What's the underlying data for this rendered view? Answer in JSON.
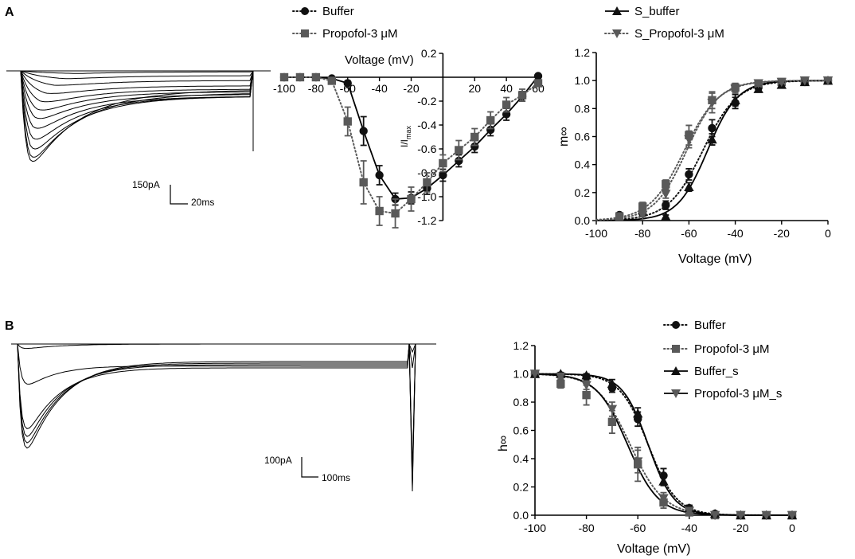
{
  "panels": [
    {
      "label": "A"
    },
    {
      "label": "B"
    }
  ],
  "scale_bars": {
    "a": {
      "current": "150pA",
      "time": "20ms"
    },
    "b": {
      "current": "100pA",
      "time": "100ms"
    }
  },
  "colors": {
    "buffer": "#111111",
    "propofol": "#595959"
  },
  "chart_data": [
    {
      "id": "iv",
      "type": "scatter",
      "title": "",
      "xlabel": "Voltage (mV)",
      "ylabel": "I/Imax",
      "ylabel_main": "I/I",
      "ylabel_sub": "max",
      "xlim": [
        -100,
        60
      ],
      "ylim": [
        -1.2,
        0.2
      ],
      "xticks": [
        -100,
        -80,
        -60,
        -40,
        -20,
        20,
        40,
        60
      ],
      "yticks": [
        0.2,
        -0.2,
        -0.4,
        -0.6,
        -0.8,
        -1.0,
        -1.2
      ],
      "xtick_labels": [
        "-100",
        "-80",
        "-60",
        "-40",
        "-20",
        "20",
        "40",
        "60"
      ],
      "ytick_labels": [
        "0.2",
        "-0.2",
        "-0.4",
        "-0.6",
        "-0.8",
        "-1.0",
        "-1.2"
      ],
      "legend": {
        "position": "top",
        "entries": [
          "Buffer",
          "Propofol-3 μM"
        ]
      },
      "series": [
        {
          "name": "Buffer",
          "marker": "circle",
          "color": "#111111",
          "x": [
            -100,
            -90,
            -80,
            -70,
            -60,
            -50,
            -40,
            -30,
            -20,
            -10,
            0,
            10,
            20,
            30,
            40,
            50,
            60
          ],
          "y": [
            0,
            0,
            0,
            -0.01,
            -0.05,
            -0.45,
            -0.82,
            -1.02,
            -1.01,
            -0.93,
            -0.82,
            -0.7,
            -0.58,
            -0.44,
            -0.31,
            -0.16,
            0.01
          ],
          "err": [
            0,
            0,
            0,
            0.01,
            0.02,
            0.12,
            0.08,
            0.05,
            0.05,
            0.05,
            0.05,
            0.05,
            0.05,
            0.05,
            0.05,
            0.04,
            0.01
          ]
        },
        {
          "name": "Propofol-3 μM",
          "marker": "square",
          "color": "#595959",
          "x": [
            -100,
            -90,
            -80,
            -70,
            -60,
            -50,
            -40,
            -30,
            -20,
            -10,
            0,
            10,
            20,
            30,
            40,
            50,
            60
          ],
          "y": [
            0,
            0,
            0,
            -0.03,
            -0.37,
            -0.88,
            -1.12,
            -1.14,
            -1.02,
            -0.88,
            -0.72,
            -0.61,
            -0.5,
            -0.36,
            -0.23,
            -0.15,
            -0.05
          ],
          "err": [
            0,
            0,
            0,
            0.02,
            0.12,
            0.18,
            0.12,
            0.12,
            0.1,
            0.08,
            0.07,
            0.08,
            0.07,
            0.07,
            0.06,
            0.05,
            0.02
          ]
        }
      ]
    },
    {
      "id": "act",
      "type": "scatter",
      "title": "",
      "xlabel": "Voltage (mV)",
      "ylabel": "m∞",
      "xlim": [
        -100,
        0
      ],
      "ylim": [
        0,
        1.2
      ],
      "xticks": [
        -100,
        -80,
        -60,
        -40,
        -20,
        0
      ],
      "yticks": [
        0,
        0.2,
        0.4,
        0.6,
        0.8,
        1.0,
        1.2
      ],
      "xtick_labels": [
        "-100",
        "-80",
        "-60",
        "-40",
        "-20",
        "0"
      ],
      "ytick_labels": [
        "0.0",
        "0.2",
        "0.4",
        "0.6",
        "0.8",
        "1.0",
        "1.2"
      ],
      "legend": {
        "position": "top",
        "entries": [
          "S_buffer",
          "S_Propofol-3 μM"
        ]
      },
      "series": [
        {
          "name": "Buffer",
          "marker": "circle",
          "color": "#111111",
          "x": [
            -90,
            -80,
            -70,
            -60,
            -50,
            -40,
            -30,
            -20,
            -10,
            0
          ],
          "y": [
            0.04,
            0.05,
            0.11,
            0.33,
            0.66,
            0.84,
            0.95,
            0.98,
            0.99,
            1.0
          ],
          "err": [
            0.01,
            0.02,
            0.03,
            0.04,
            0.06,
            0.04,
            0.03,
            0.02,
            0.01,
            0.0
          ]
        },
        {
          "name": "Propofol-3 μM",
          "marker": "square",
          "color": "#595959",
          "x": [
            -90,
            -80,
            -70,
            -60,
            -50,
            -40,
            -30,
            -20,
            -10,
            0
          ],
          "y": [
            0.03,
            0.1,
            0.26,
            0.61,
            0.86,
            0.95,
            0.98,
            0.99,
            1.0,
            1.0
          ],
          "err": [
            0.01,
            0.03,
            0.03,
            0.07,
            0.06,
            0.03,
            0.02,
            0.01,
            0.0,
            0.0
          ]
        },
        {
          "name": "S_buffer",
          "marker": "triangle-up",
          "color": "#111111",
          "x": [
            -70,
            -60,
            -50,
            -40,
            -30,
            -20,
            -10,
            0
          ],
          "y": [
            0.03,
            0.24,
            0.58,
            0.86,
            0.94,
            0.97,
            0.99,
            1.0
          ],
          "err": [
            0.01,
            0.03,
            0.04,
            0.04,
            0.02,
            0.02,
            0.01,
            0.0
          ]
        },
        {
          "name": "S_Propofol-3 μM",
          "marker": "triangle-down",
          "color": "#595959",
          "x": [
            -80,
            -70,
            -60,
            -50,
            -40,
            -30,
            -20,
            -10,
            0
          ],
          "y": [
            0.04,
            0.19,
            0.58,
            0.84,
            0.94,
            0.98,
            0.99,
            1.0,
            1.0
          ],
          "err": [
            0.01,
            0.03,
            0.06,
            0.07,
            0.03,
            0.02,
            0.01,
            0.0,
            0.0
          ]
        }
      ],
      "fits": [
        {
          "name": "Buffer",
          "v_half": -54,
          "k": 7.5,
          "style": "dotted",
          "color": "#111111"
        },
        {
          "name": "Propofol-3 μM",
          "v_half": -62,
          "k": 7.5,
          "style": "dotted",
          "color": "#595959"
        },
        {
          "name": "S_buffer",
          "v_half": -52,
          "k": 6.5,
          "style": "solid",
          "color": "#111111"
        },
        {
          "name": "S_Propofol-3 μM",
          "v_half": -61,
          "k": 7,
          "style": "dotted",
          "color": "#595959"
        }
      ]
    },
    {
      "id": "inact",
      "type": "scatter",
      "title": "",
      "xlabel": "Voltage (mV)",
      "ylabel": "h∞",
      "xlim": [
        -100,
        0
      ],
      "ylim": [
        0,
        1.2
      ],
      "xticks": [
        -100,
        -80,
        -60,
        -40,
        -20,
        0
      ],
      "yticks": [
        0,
        0.2,
        0.4,
        0.6,
        0.8,
        1.0,
        1.2
      ],
      "xtick_labels": [
        "-100",
        "-80",
        "-60",
        "-40",
        "-20",
        "0"
      ],
      "ytick_labels": [
        "0.0",
        "0.2",
        "0.4",
        "0.6",
        "0.8",
        "1.0",
        "1.2"
      ],
      "legend": {
        "position": "top-right",
        "entries": [
          "Buffer",
          "Propofol-3 μM",
          "Buffer_s",
          "Propofol-3 μM_s"
        ]
      },
      "series": [
        {
          "name": "Buffer",
          "marker": "circle",
          "color": "#111111",
          "x": [
            -100,
            -90,
            -80,
            -70,
            -60,
            -50,
            -40,
            -30,
            -20,
            -10,
            0
          ],
          "y": [
            1.0,
            0.99,
            0.98,
            0.9,
            0.68,
            0.28,
            0.05,
            0.01,
            0.0,
            0.0,
            0.0
          ],
          "err": [
            0.0,
            0.01,
            0.02,
            0.03,
            0.05,
            0.05,
            0.02,
            0.01,
            0.0,
            0.0,
            0.0
          ]
        },
        {
          "name": "Propofol-3 μM",
          "marker": "square",
          "color": "#595959",
          "x": [
            -100,
            -90,
            -80,
            -70,
            -60,
            -50,
            -40,
            -30,
            -20,
            -10,
            0
          ],
          "y": [
            1.0,
            0.93,
            0.85,
            0.66,
            0.36,
            0.09,
            0.02,
            0.0,
            0.0,
            0.0,
            0.0
          ],
          "err": [
            0.0,
            0.03,
            0.07,
            0.08,
            0.12,
            0.04,
            0.01,
            0.0,
            0.0,
            0.0,
            0.0
          ]
        },
        {
          "name": "Buffer_s",
          "marker": "triangle-up",
          "color": "#111111",
          "x": [
            -100,
            -90,
            -80,
            -70,
            -60,
            -50,
            -40,
            -30,
            -20,
            -10,
            0
          ],
          "y": [
            1.0,
            1.0,
            0.99,
            0.93,
            0.72,
            0.24,
            0.05,
            0.01,
            0.0,
            0.0,
            0.0
          ],
          "err": [
            0.0,
            0.01,
            0.01,
            0.03,
            0.04,
            0.03,
            0.02,
            0.01,
            0.0,
            0.0,
            0.0
          ]
        },
        {
          "name": "Propofol-3 μM_s",
          "marker": "triangle-down",
          "color": "#595959",
          "x": [
            -100,
            -90,
            -80,
            -70,
            -60,
            -50,
            -40,
            -30,
            -20,
            -10,
            0
          ],
          "y": [
            1.0,
            0.98,
            0.92,
            0.75,
            0.38,
            0.12,
            0.03,
            0.0,
            0.0,
            0.0,
            0.0
          ],
          "err": [
            0.0,
            0.01,
            0.03,
            0.05,
            0.08,
            0.04,
            0.01,
            0.0,
            0.0,
            0.0,
            0.0
          ]
        }
      ],
      "fits": [
        {
          "name": "Buffer",
          "v_half": -56,
          "k": 5.5,
          "style": "dotted",
          "color": "#111111"
        },
        {
          "name": "Propofol-3 μM",
          "v_half": -63,
          "k": 6.5,
          "style": "dotted",
          "color": "#595959"
        },
        {
          "name": "Buffer_s",
          "v_half": -56,
          "k": 5.0,
          "style": "solid",
          "color": "#111111"
        },
        {
          "name": "Propofol-3 μM_s",
          "v_half": -64,
          "k": 6.0,
          "style": "solid",
          "color": "#595959"
        }
      ]
    }
  ]
}
